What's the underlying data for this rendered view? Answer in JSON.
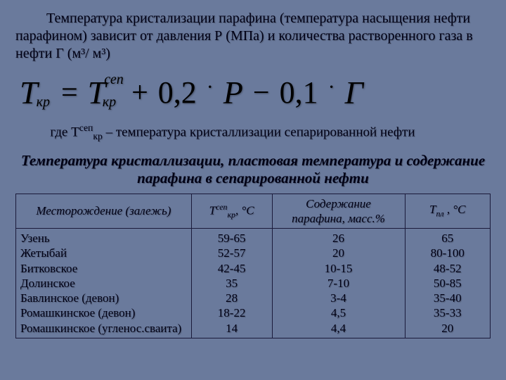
{
  "intro": "Температура кристализации парафина (температура насыщения нефти парафином) зависит от давления Р (МПа) и количества растворенного газа в нефти Г (м³/ м³)",
  "formula": {
    "lhs_T": "T",
    "lhs_sub": "кр",
    "t1_T": "T",
    "t1_sup": "сеп",
    "t1_sub": "кр",
    "c1": "0,2",
    "P": "P",
    "c2": "0,1",
    "G": "Г"
  },
  "where_prefix": "где Т",
  "where_sup": "сеп",
  "where_sub": "кр",
  "where_rest": " – температура кристаллизации сепарированной нефти",
  "table_title": "Температура кристаллизации, пластовая температура и содержание парафина в сепарированной нефти",
  "table": {
    "headers": {
      "col1": "Месторождение (залежь)",
      "col2_pre": "Т",
      "col2_sup": "сеп",
      "col2_sub": "кр",
      "col2_post": ", °С",
      "col3_l1": "Содержание",
      "col3_l2": "парафина, масс.%",
      "col4_pre": "Т",
      "col4_sub": "пл",
      "col4_post": " , °С"
    },
    "col_widths": [
      "37%",
      "17%",
      "28%",
      "18%"
    ],
    "rows": [
      {
        "field": "Узень",
        "tcr": "59-65",
        "paraffin": "26",
        "tpl": "65"
      },
      {
        "field": "Жетыбай",
        "tcr": "52-57",
        "paraffin": "20",
        "tpl": "80-100"
      },
      {
        "field": "Битковское",
        "tcr": "42-45",
        "paraffin": "10-15",
        "tpl": "48-52"
      },
      {
        "field": "Долинское",
        "tcr": "35",
        "paraffin": "7-10",
        "tpl": "50-85"
      },
      {
        "field": "Бавлинское (девон)",
        "tcr": "28",
        "paraffin": "3-4",
        "tpl": "35-40"
      },
      {
        "field": "Ромашкинское (девон)",
        "tcr": "18-22",
        "paraffin": "4,5",
        "tpl": "35-33"
      },
      {
        "field": "Ромашкинское (угленос.сваита)",
        "tcr": "14",
        "paraffin": "4,4",
        "tpl": "20"
      }
    ]
  },
  "colors": {
    "background": "#6a7a9c",
    "text": "#000015",
    "border": "#1a1a3a"
  }
}
